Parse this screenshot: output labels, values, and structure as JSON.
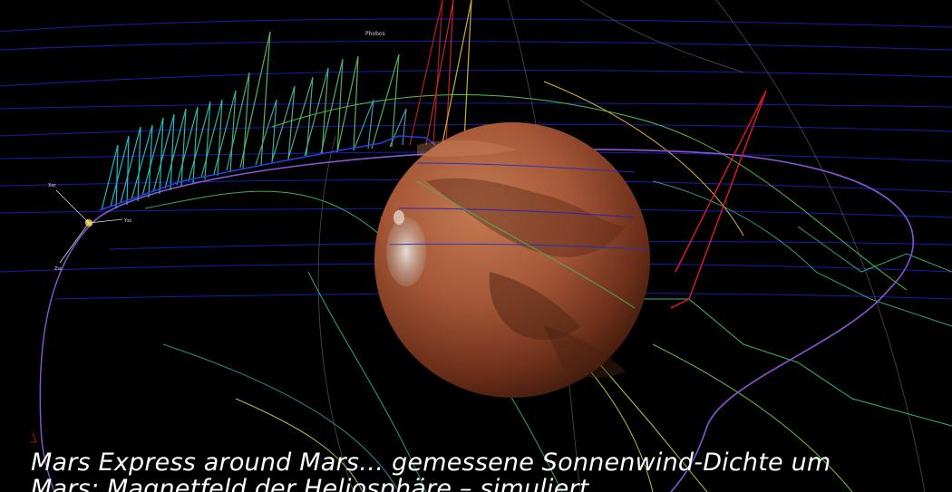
{
  "scene": {
    "label_phobos": "Phobos",
    "axis_labels": {
      "x": "Xsc",
      "y": "Ysc",
      "z": "Zsc"
    },
    "colors": {
      "background": "#000000",
      "orbit": "#8a56d6",
      "field_blue": "#1a24c8",
      "field_green": "#2fbf4a",
      "field_yellow": "#d9c23a",
      "field_red": "#e01a2a",
      "mars_light": "#c2734c",
      "mars_dark": "#4a1f10",
      "spacecraft": "#d7b02b"
    }
  },
  "caption": {
    "line1": "Mars Express around Mars… gemessene Sonnenwind-Dichte um",
    "line2": "Mars; Magnetfeld der Heliosphäre – simuliert"
  }
}
